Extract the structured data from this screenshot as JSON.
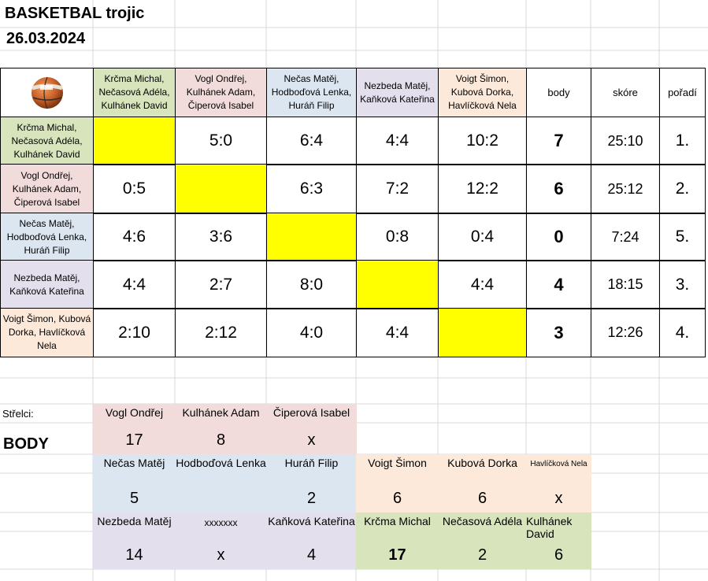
{
  "title": "BASKETBAL trojic",
  "date": "26.03.2024",
  "ball_icon": "basketball-icon",
  "teams": [
    "Krčma Michal, Nečasová Adéla, Kulhánek David",
    "Vogl Ondřej, Kulhánek Adam, Čiperová Isabel",
    "Nečas Matěj, Hodboďová Lenka, Huráň Filip",
    "Nezbeda Matěj, Kaňková Kateřina",
    "Voigt Šimon, Kubová Dorka, Havlíčková Nela"
  ],
  "col_headers": {
    "body": "body",
    "skore": "skóre",
    "poradi": "pořadí"
  },
  "results": [
    [
      "",
      "5:0",
      "6:4",
      "4:4",
      "10:2"
    ],
    [
      "0:5",
      "",
      "6:3",
      "7:2",
      "12:2"
    ],
    [
      "4:6",
      "3:6",
      "",
      "0:8",
      "0:4"
    ],
    [
      "4:4",
      "2:7",
      "8:0",
      "",
      "4:4"
    ],
    [
      "2:10",
      "2:12",
      "4:0",
      "4:4",
      ""
    ]
  ],
  "body": [
    "7",
    "6",
    "0",
    "4",
    "3"
  ],
  "skore": [
    "25:10",
    "25:12",
    "7:24",
    "18:15",
    "12:26"
  ],
  "poradi": [
    "1.",
    "2.",
    "5.",
    "3.",
    "4."
  ],
  "strelci_label": "Střelci:",
  "body_label": "BODY",
  "scorers": {
    "g1": [
      {
        "name": "Vogl Ondřej",
        "value": "17"
      },
      {
        "name": "Kulhánek Adam",
        "value": "8"
      },
      {
        "name": "Čiperová Isabel",
        "value": "x"
      }
    ],
    "g2": [
      {
        "name": "Nečas Matěj",
        "value": "5"
      },
      {
        "name": "Hodboďová Lenka",
        "value": ""
      },
      {
        "name": "Huráň Filip",
        "value": "2"
      }
    ],
    "g3": [
      {
        "name": "Voigt Šimon",
        "value": "6"
      },
      {
        "name": "Kubová Dorka",
        "value": "6"
      },
      {
        "name": "Havlíčková Nela",
        "value": "x"
      }
    ],
    "g4": [
      {
        "name": "Nezbeda Matěj",
        "value": "14"
      },
      {
        "name": "xxxxxxx",
        "value": "x"
      },
      {
        "name": "Kaňková Kateřina",
        "value": "4"
      }
    ],
    "g5": [
      {
        "name": "Krčma Michal",
        "value": "17"
      },
      {
        "name": "Nečasová Adéla",
        "value": "2"
      },
      {
        "name": "Kulhánek David",
        "value": "6"
      }
    ]
  },
  "colors": {
    "green": "#d8e4bc",
    "pink": "#f2dcdb",
    "blue": "#dce6f1",
    "lavender": "#e4dfec",
    "peach": "#fde9d9",
    "yellow": "#ffff00"
  }
}
